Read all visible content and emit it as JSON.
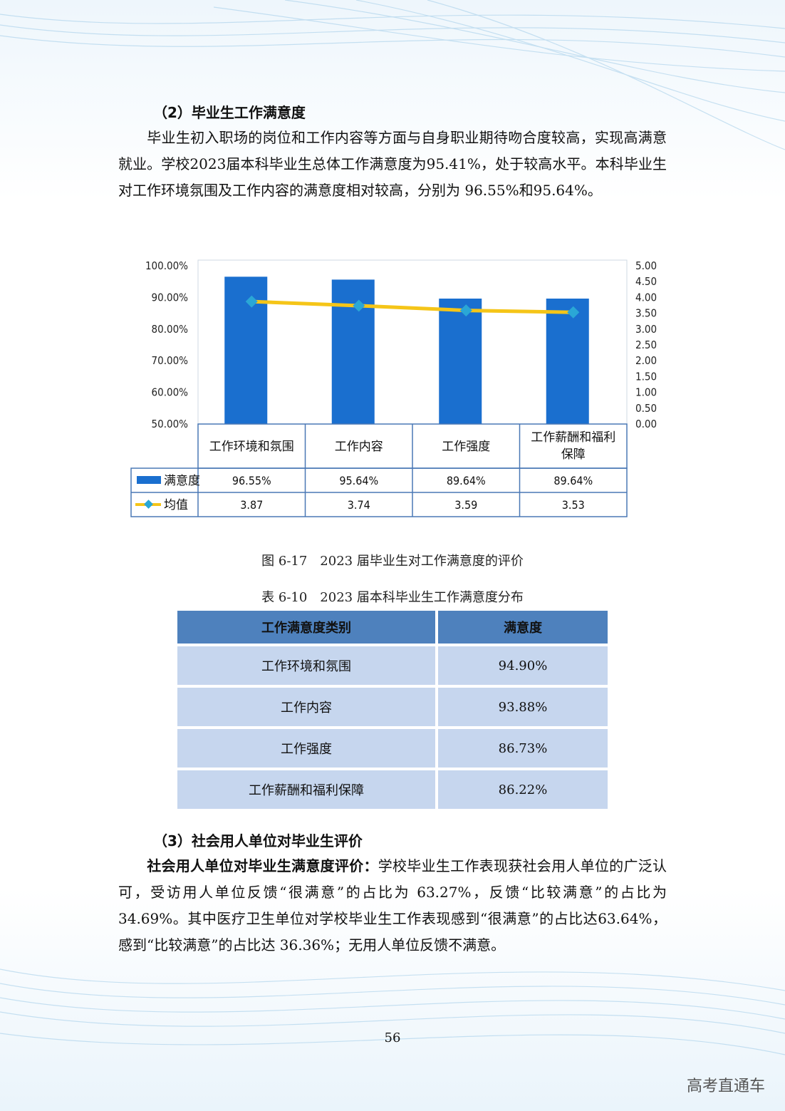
{
  "section2": {
    "heading": "（2）毕业生工作满意度",
    "paragraph": "毕业生初入职场的岗位和工作内容等方面与自身职业期待吻合度较高，实现高满意就业。学校2023届本科毕业生总体工作满意度为95.41%，处于较高水平。本科毕业生对工作环境氛围及工作内容的满意度相对较高，分别为 96.55%和95.64%。"
  },
  "chart_data": {
    "type": "bar",
    "categories": [
      "工作环境和氛围",
      "工作内容",
      "工作强度",
      "工作薪酬和福利保障"
    ],
    "series": [
      {
        "name": "满意度",
        "type": "bar",
        "axis": "left",
        "values": [
          96.55,
          95.64,
          89.64,
          89.64
        ],
        "labels": [
          "96.55%",
          "95.64%",
          "89.64%",
          "89.64%"
        ]
      },
      {
        "name": "均值",
        "type": "line",
        "axis": "right",
        "values": [
          3.87,
          3.74,
          3.59,
          3.53
        ],
        "labels": [
          "3.87",
          "3.74",
          "3.59",
          "3.53"
        ]
      }
    ],
    "y_left": {
      "range": [
        50,
        100
      ],
      "ticks": [
        "100.00%",
        "90.00%",
        "80.00%",
        "70.00%",
        "60.00%",
        "50.00%"
      ]
    },
    "y_right": {
      "range": [
        0,
        5
      ],
      "ticks": [
        "5.00",
        "4.50",
        "4.00",
        "3.50",
        "3.00",
        "2.50",
        "2.00",
        "1.50",
        "1.00",
        "0.50",
        "0.00"
      ]
    },
    "colors": {
      "bar": "#1a6fcf",
      "line": "#f5c518",
      "marker": "#2aa7d6"
    },
    "grid": false,
    "legend": "data-table"
  },
  "figure_caption": "图 6-17　2023 届毕业生对工作满意度的评价",
  "table_caption": "表 6-10　2023 届本科毕业生工作满意度分布",
  "table": {
    "headers": [
      "工作满意度类别",
      "满意度"
    ],
    "rows": [
      [
        "工作环境和氛围",
        "94.90%"
      ],
      [
        "工作内容",
        "93.88%"
      ],
      [
        "工作强度",
        "86.73%"
      ],
      [
        "工作薪酬和福利保障",
        "86.22%"
      ]
    ]
  },
  "section3": {
    "heading": "（3）社会用人单位对毕业生评价",
    "lead": "社会用人单位对毕业生满意度评价：",
    "paragraph": "学校毕业生工作表现获社会用人单位的广泛认可，受访用人单位反馈“很满意”的占比为 63.27%，反馈“比较满意”的占比为 34.69%。其中医疗卫生单位对学校毕业生工作表现感到“很满意”的占比达63.64%，感到“比较满意”的占比达 36.36%；无用人单位反馈不满意。"
  },
  "page_number": "56",
  "watermark": "高考直通车"
}
